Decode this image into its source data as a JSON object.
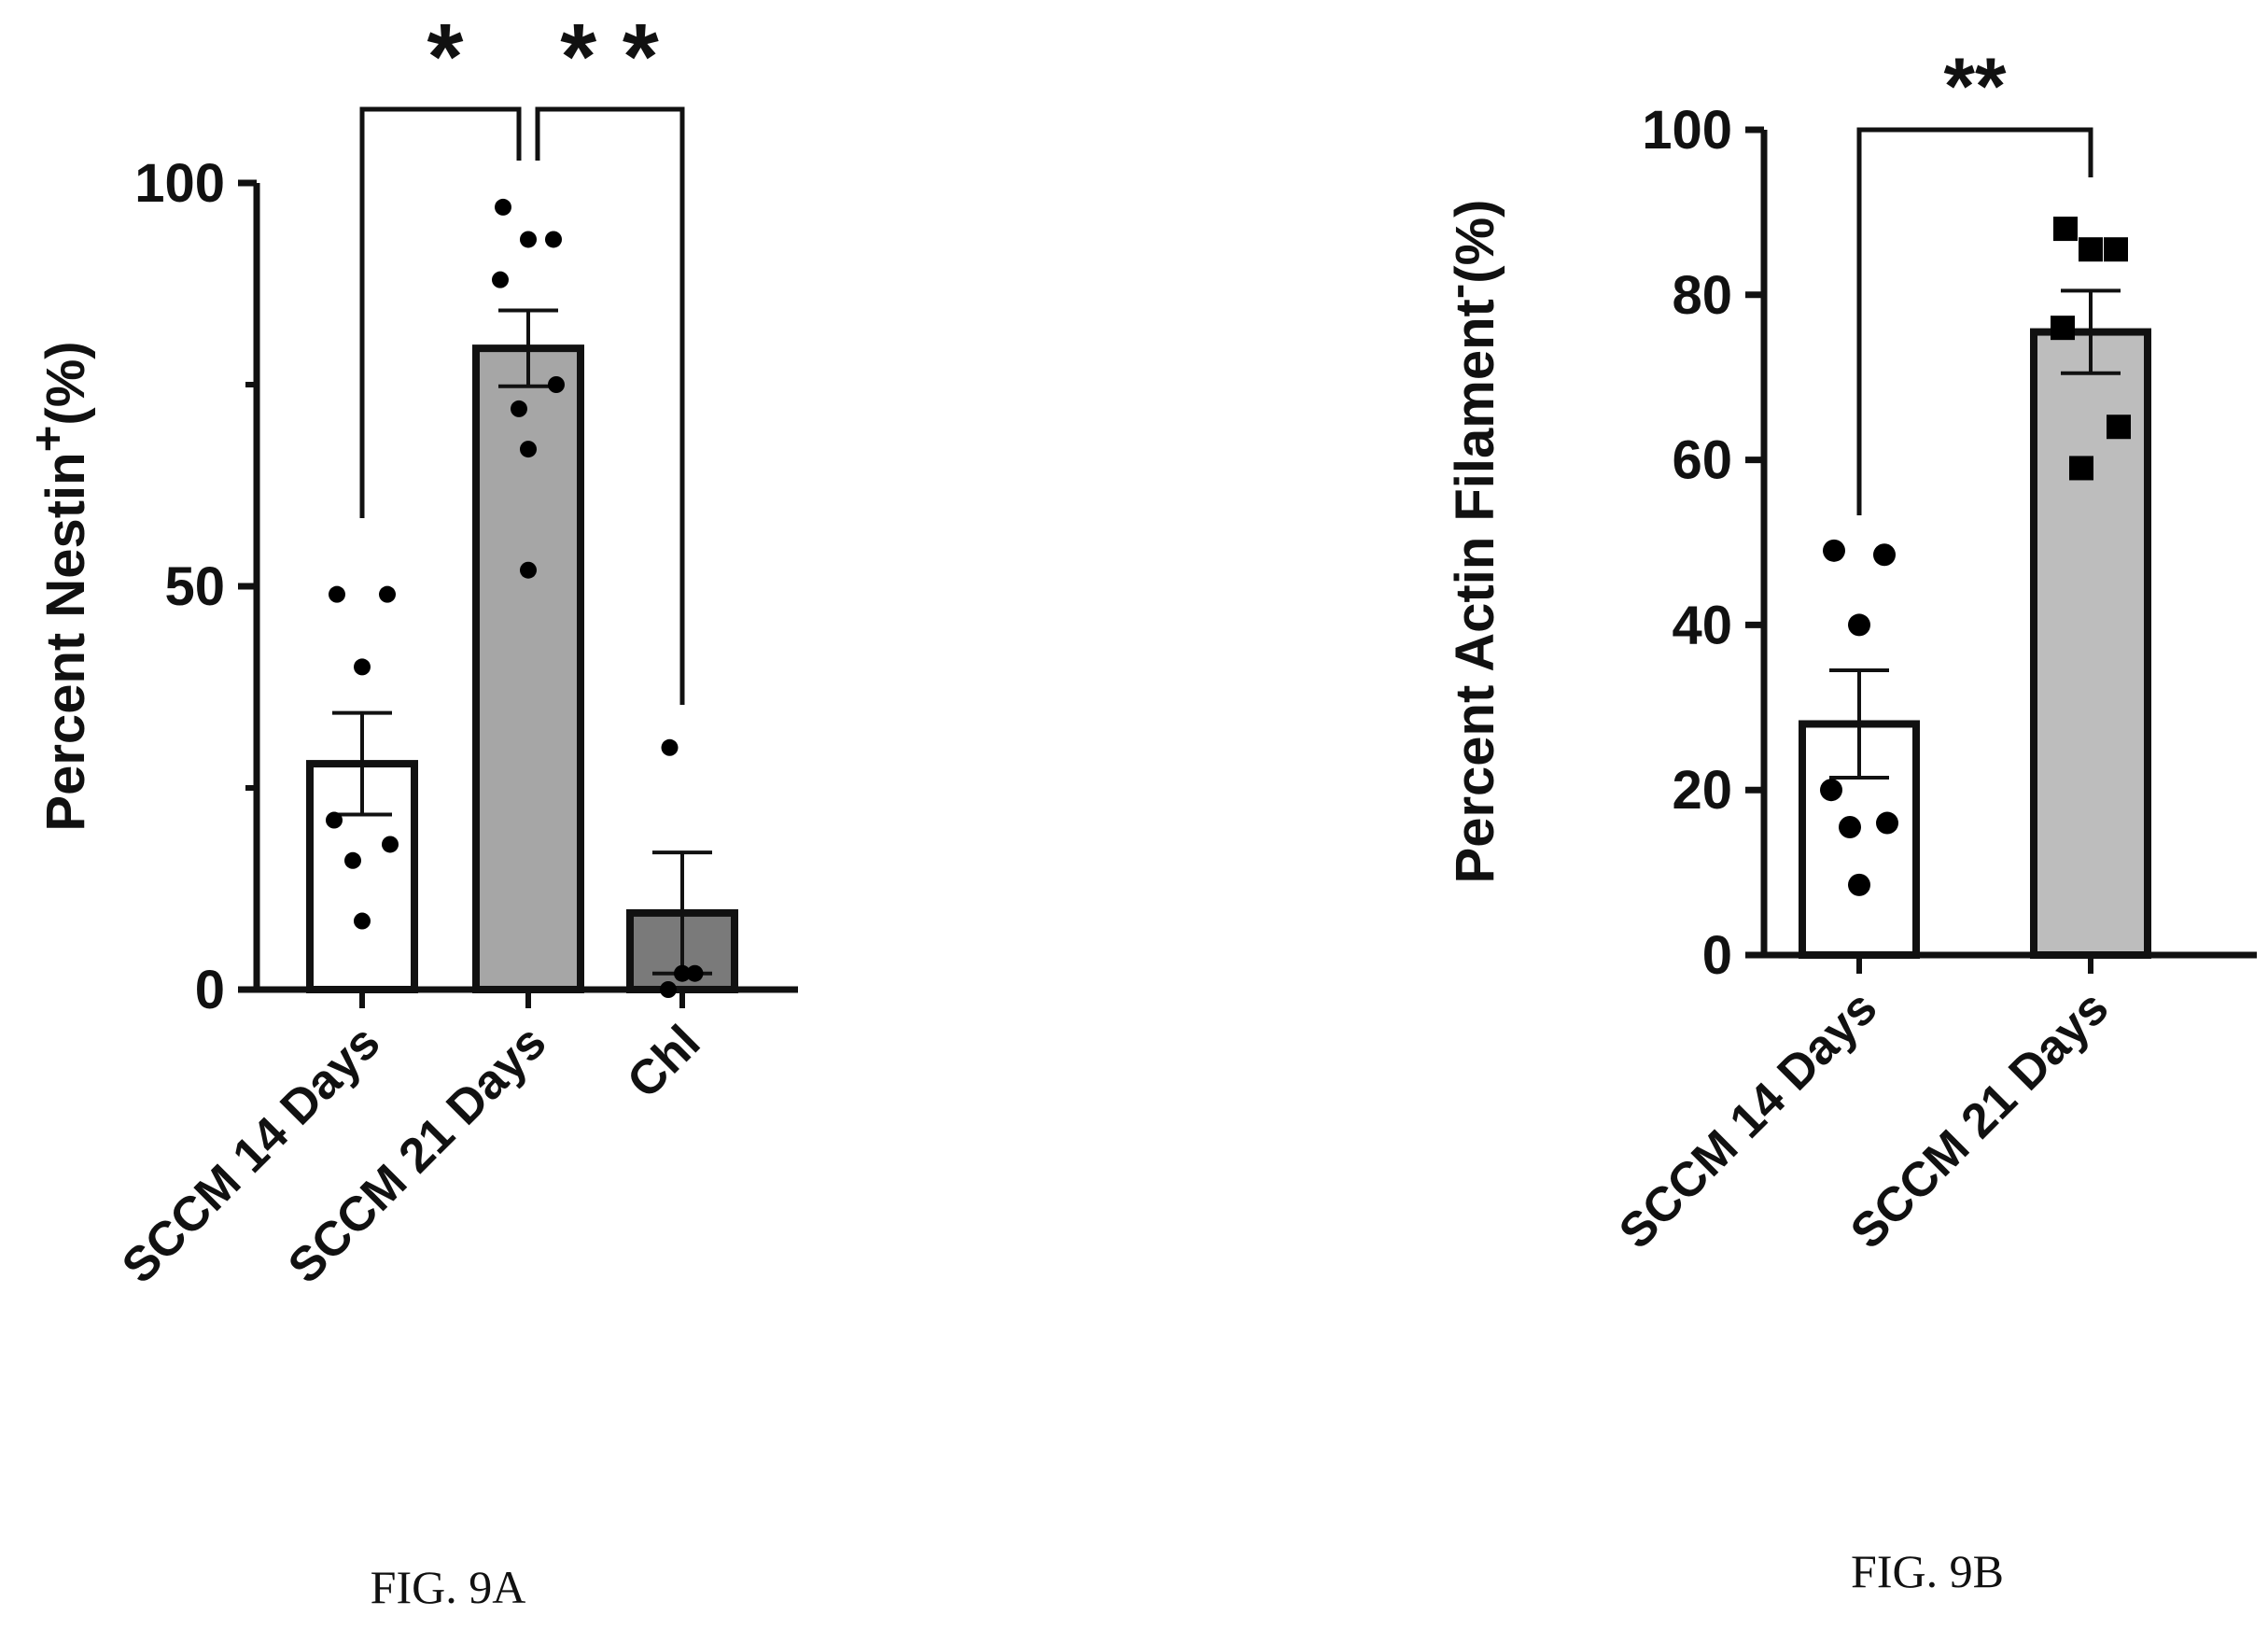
{
  "chart_data": [
    {
      "type": "bar",
      "ylabel_main": "Percent Nestin",
      "ylabel_sup": "+",
      "ylabel_suffix": "(%)",
      "ylim": [
        0,
        100
      ],
      "yticks": [
        0,
        50,
        100
      ],
      "categories": [
        "SCCM 14 Days",
        "SCCM 21 Days",
        "Chl"
      ],
      "bar_colors": [
        "#ffffff",
        "#a6a6a6",
        "#7a7a7a"
      ],
      "values": [
        28,
        79.5,
        9.5
      ],
      "error": [
        6.3,
        4.7,
        7.5
      ],
      "points": [
        [
          49,
          49,
          40,
          21,
          18,
          16,
          8.5
        ],
        [
          97,
          93,
          93,
          88,
          75,
          72,
          67,
          52
        ],
        [
          30,
          2,
          2,
          0
        ]
      ],
      "marker": "circle",
      "significance": [
        {
          "from": 0,
          "to": 1,
          "label": "*"
        },
        {
          "from": 1,
          "to": 2,
          "label": "* *"
        }
      ],
      "caption": "FIG. 9A"
    },
    {
      "type": "bar",
      "ylabel_main": "Percent Actin Filament",
      "ylabel_sup": "-",
      "ylabel_suffix": "(%)",
      "ylim": [
        0,
        100
      ],
      "yticks": [
        0,
        20,
        40,
        60,
        80,
        100
      ],
      "categories": [
        "SCCM 14 Days",
        "SCCM 21 Days"
      ],
      "bar_colors": [
        "#ffffff",
        "#bdbdbd"
      ],
      "values": [
        28,
        75.5
      ],
      "error": [
        6.5,
        5
      ],
      "points": [
        [
          49,
          48.5,
          40,
          20,
          16,
          15.5,
          8.5
        ],
        [
          88,
          85.5,
          85.5,
          76,
          64,
          59
        ]
      ],
      "markers": [
        "circle",
        "square"
      ],
      "significance": [
        {
          "from": 0,
          "to": 1,
          "label": "**"
        }
      ],
      "caption": "FIG. 9B"
    }
  ]
}
